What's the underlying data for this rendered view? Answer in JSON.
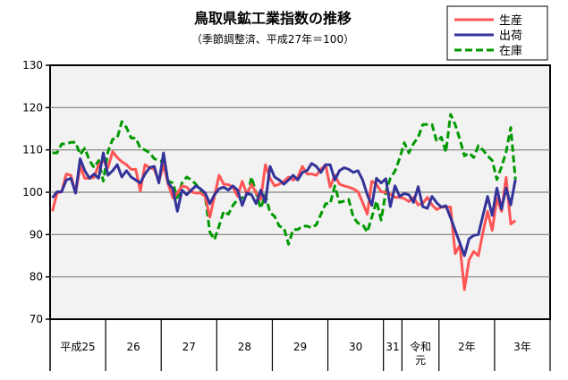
{
  "chart_data": {
    "type": "line",
    "title": "鳥取県鉱工業指数の推移",
    "subtitle": "（季節調整済、平成27年＝100）",
    "xlabel": "",
    "ylabel": "",
    "ylim": [
      70,
      130
    ],
    "yticks": [
      70,
      80,
      90,
      100,
      110,
      120,
      130
    ],
    "grid": true,
    "legend_position": "top-right",
    "x_period": "monthly, 2013-01 to 2021-05",
    "year_groups": [
      {
        "label": "平成25",
        "months": 12
      },
      {
        "label": "26",
        "months": 12
      },
      {
        "label": "27",
        "months": 12
      },
      {
        "label": "28",
        "months": 12
      },
      {
        "label": "29",
        "months": 12
      },
      {
        "label": "30",
        "months": 12
      },
      {
        "label": "31",
        "months": 4
      },
      {
        "label": "令和\n元",
        "months": 8
      },
      {
        "label": "2年",
        "months": 12
      },
      {
        "label": "3年",
        "months": 12
      }
    ],
    "series": [
      {
        "name": "生産",
        "color": "#ff5555",
        "style": "solid",
        "values": [
          95.5,
          99.8,
          100.1,
          104.3,
          104,
          99.8,
          106.1,
          103.3,
          103.3,
          103.5,
          106.5,
          107.5,
          105.8,
          109.6,
          108.2,
          107.2,
          106.5,
          105.4,
          105.4,
          100.3,
          106.5,
          105.8,
          105.4,
          102.6,
          106.5,
          101.9,
          98.7,
          99.8,
          101.5,
          101.2,
          100.1,
          99.8,
          99.8,
          99,
          94.1,
          99,
          104,
          101.9,
          101.8,
          101.2,
          99,
          102.6,
          99.5,
          101.9,
          99.8,
          98.3,
          106.5,
          103.3,
          101.5,
          101.9,
          102.6,
          103.6,
          102.9,
          103.6,
          106.1,
          104.3,
          104.3,
          104,
          105.4,
          106.5,
          101.2,
          104,
          101.9,
          101.5,
          101.2,
          100.8,
          100.1,
          97.6,
          94.8,
          102.6,
          101.9,
          100.1,
          100,
          99.5,
          98.8,
          98.8,
          98.5,
          97.8,
          98.8,
          97,
          97.4,
          98.8,
          97,
          95.9,
          96.5,
          96.5,
          96.5,
          85.5,
          87.5,
          77,
          84,
          86,
          85,
          90.5,
          95.5,
          91,
          98.5,
          95.5,
          103.5,
          92.5,
          93.3
        ]
      },
      {
        "name": "出荷",
        "color": "#333399",
        "style": "solid",
        "values": [
          98.7,
          100.1,
          100.1,
          102.9,
          103.3,
          99.8,
          107.9,
          105.1,
          103.3,
          104.3,
          103.3,
          109.3,
          104,
          105.1,
          106.5,
          103.6,
          105.1,
          103.6,
          102.9,
          102.2,
          104.3,
          105.8,
          106.1,
          102.2,
          109.3,
          102.2,
          100.8,
          95.5,
          100.5,
          99.4,
          100.5,
          101.5,
          100.8,
          99.8,
          97.3,
          99.4,
          100.8,
          101.2,
          100.5,
          101.5,
          100.5,
          96.9,
          99.8,
          99.4,
          97.3,
          100.5,
          97.6,
          106.1,
          103.6,
          102.9,
          101.9,
          102.9,
          104,
          102.9,
          104.7,
          105.1,
          106.8,
          106.1,
          104.7,
          106.5,
          106.5,
          102.9,
          105.1,
          105.8,
          105.4,
          104.7,
          105.1,
          102.9,
          99.4,
          96.9,
          103.3,
          102.2,
          103.2,
          96.6,
          101.5,
          99,
          99.7,
          99.4,
          97.6,
          101.3,
          96.6,
          96.2,
          99,
          97.5,
          96.5,
          96.8,
          94,
          91,
          88,
          85,
          89,
          89.8,
          90,
          94.5,
          99,
          94.5,
          101,
          96,
          101,
          97,
          103
        ]
      },
      {
        "name": "在庫",
        "color": "#009900",
        "style": "dashed",
        "values": [
          109.3,
          109.3,
          111.4,
          111.4,
          111.8,
          111.8,
          108.9,
          110.4,
          107.5,
          105.8,
          107.5,
          102.6,
          109.6,
          112.5,
          112.8,
          116.7,
          115.3,
          112.8,
          112.8,
          110.4,
          110,
          109.3,
          107.9,
          107.5,
          107.2,
          102.6,
          102.2,
          98.7,
          102.2,
          103.6,
          102.9,
          101.9,
          100.5,
          99,
          90.6,
          88.8,
          92,
          95.5,
          94.8,
          96.9,
          98.3,
          98.7,
          98.7,
          103.6,
          99.8,
          96.2,
          99.4,
          95.2,
          94.3,
          92,
          91.6,
          87.7,
          91.2,
          91.2,
          92,
          92,
          91.6,
          92.3,
          94.8,
          97.3,
          97.3,
          101.5,
          97.6,
          97.9,
          98.3,
          94.1,
          92.7,
          92.4,
          90.6,
          94.1,
          97.9,
          93.4,
          100.1,
          103.3,
          105,
          108,
          111.7,
          109.3,
          111.5,
          113,
          116,
          116,
          116,
          112,
          113,
          109.5,
          118.4,
          116,
          112.5,
          108.6,
          109.3,
          108.2,
          111,
          110,
          108.6,
          107.5,
          103,
          106,
          109.5,
          115.3,
          103
        ]
      }
    ]
  }
}
